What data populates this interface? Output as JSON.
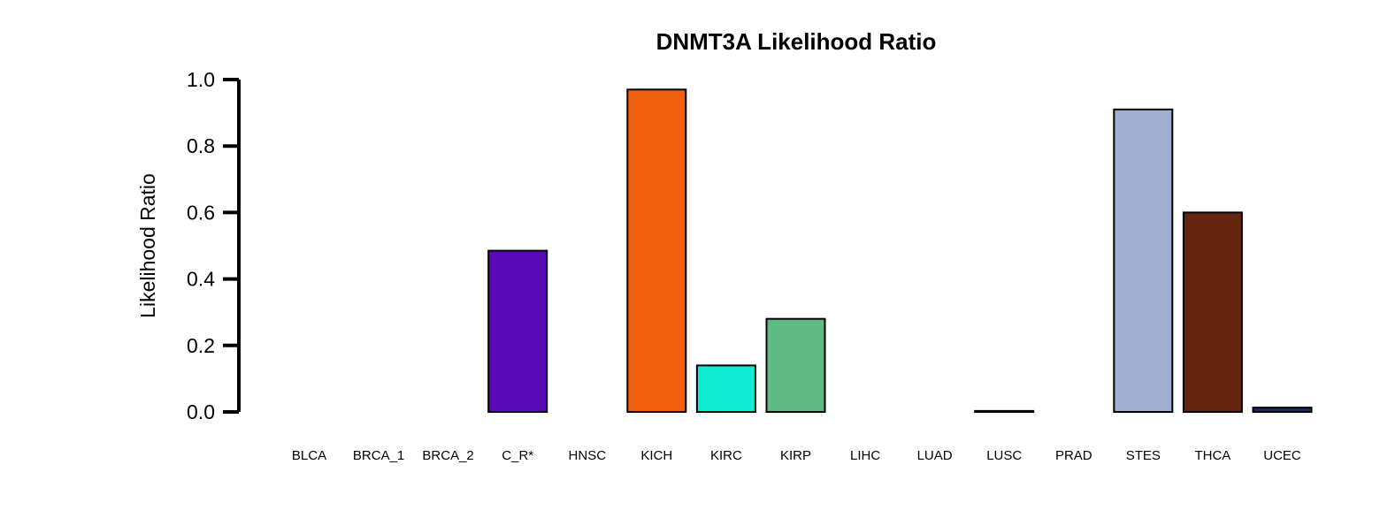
{
  "chart_data": {
    "type": "bar",
    "title": "DNMT3A Likelihood Ratio",
    "xlabel": "",
    "ylabel": "Likelihood Ratio",
    "ylim": [
      0,
      1.0
    ],
    "yticks": [
      "0.0",
      "0.2",
      "0.4",
      "0.6",
      "0.8",
      "1.0"
    ],
    "ytick_values": [
      0,
      0.2,
      0.4,
      0.6,
      0.8,
      1.0
    ],
    "grid": false,
    "legend": "none",
    "categories": [
      "BLCA",
      "BRCA_1",
      "BRCA_2",
      "C_R*",
      "HNSC",
      "KICH",
      "KIRC",
      "KIRP",
      "LIHC",
      "LUAD",
      "LUSC",
      "PRAD",
      "STES",
      "THCA",
      "UCEC"
    ],
    "values": [
      0.0,
      0.0,
      0.0,
      0.485,
      0.0,
      0.97,
      0.14,
      0.28,
      0.0,
      0.0,
      0.003,
      0.0,
      0.91,
      0.6,
      0.013
    ],
    "colors": [
      "#ffffff",
      "#ffffff",
      "#ffffff",
      "#5b0ab8",
      "#ffffff",
      "#f06010",
      "#10ecd2",
      "#5fbb83",
      "#ffffff",
      "#ffffff",
      "#ffffff",
      "#ffffff",
      "#a0aed2",
      "#662511",
      "#1a2e66"
    ]
  }
}
